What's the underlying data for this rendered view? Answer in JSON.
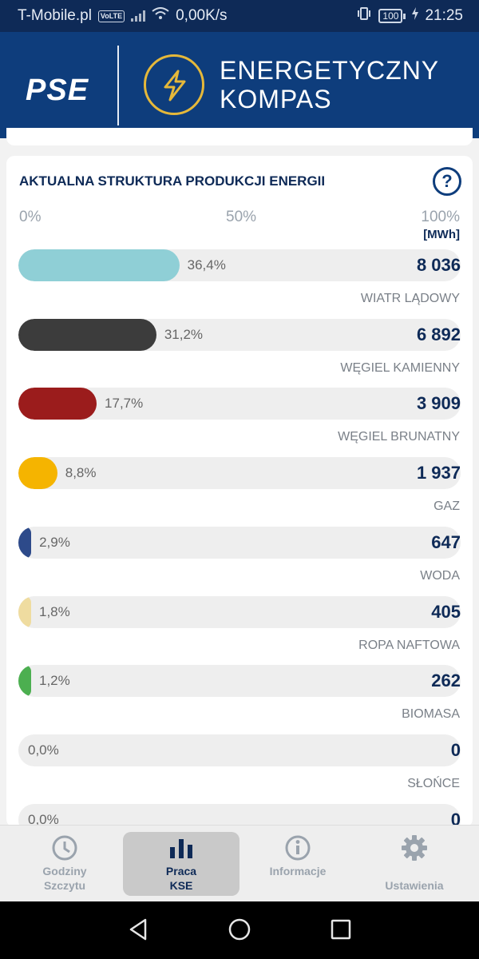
{
  "status_bar": {
    "carrier": "T-Mobile.pl",
    "volte": "VoLTE",
    "speed": "0,00K/s",
    "battery": "100",
    "time": "21:25"
  },
  "header": {
    "logo": "PSE",
    "title_line1": "ENERGETYCZNY",
    "title_line2": "KOMPAS",
    "accent_color": "#e5b83a",
    "bg_color": "#0e3d7c"
  },
  "card": {
    "title": "AKTUALNA STRUKTURA PRODUKCJI ENERGII",
    "help": "?",
    "scale": [
      "0%",
      "50%",
      "100%"
    ],
    "unit": "[MWh]",
    "rows": [
      {
        "pct": "36,4%",
        "fraction": 0.364,
        "value": "8 036",
        "source": "WIATR LĄDOWY",
        "color": "#8fcfd6"
      },
      {
        "pct": "31,2%",
        "fraction": 0.312,
        "value": "6 892",
        "source": "WĘGIEL KAMIENNY",
        "color": "#3c3c3c"
      },
      {
        "pct": "17,7%",
        "fraction": 0.177,
        "value": "3 909",
        "source": "WĘGIEL BRUNATNY",
        "color": "#9b1c1c"
      },
      {
        "pct": "8,8%",
        "fraction": 0.088,
        "value": "1 937",
        "source": "GAZ",
        "color": "#f5b400"
      },
      {
        "pct": "2,9%",
        "fraction": 0.029,
        "value": "647",
        "source": "WODA",
        "color": "#2d4a8a"
      },
      {
        "pct": "1,8%",
        "fraction": 0.018,
        "value": "405",
        "source": "ROPA NAFTOWA",
        "color": "#efdca0"
      },
      {
        "pct": "1,2%",
        "fraction": 0.012,
        "value": "262",
        "source": "BIOMASA",
        "color": "#4caf50"
      },
      {
        "pct": "0,0%",
        "fraction": 0,
        "value": "0",
        "source": "SŁOŃCE",
        "color": "#cccccc"
      },
      {
        "pct": "0,0%",
        "fraction": 0,
        "value": "0",
        "source": "",
        "color": "#cccccc"
      }
    ]
  },
  "bottom_nav": [
    {
      "label": "Godziny\nSzczytu",
      "icon": "clock-icon",
      "active": false
    },
    {
      "label": "Praca\nKSE",
      "icon": "bar-chart-icon",
      "active": true
    },
    {
      "label": "Informacje",
      "icon": "info-icon",
      "active": false
    },
    {
      "label": "Ustawienia",
      "icon": "gear-icon",
      "active": false
    }
  ]
}
